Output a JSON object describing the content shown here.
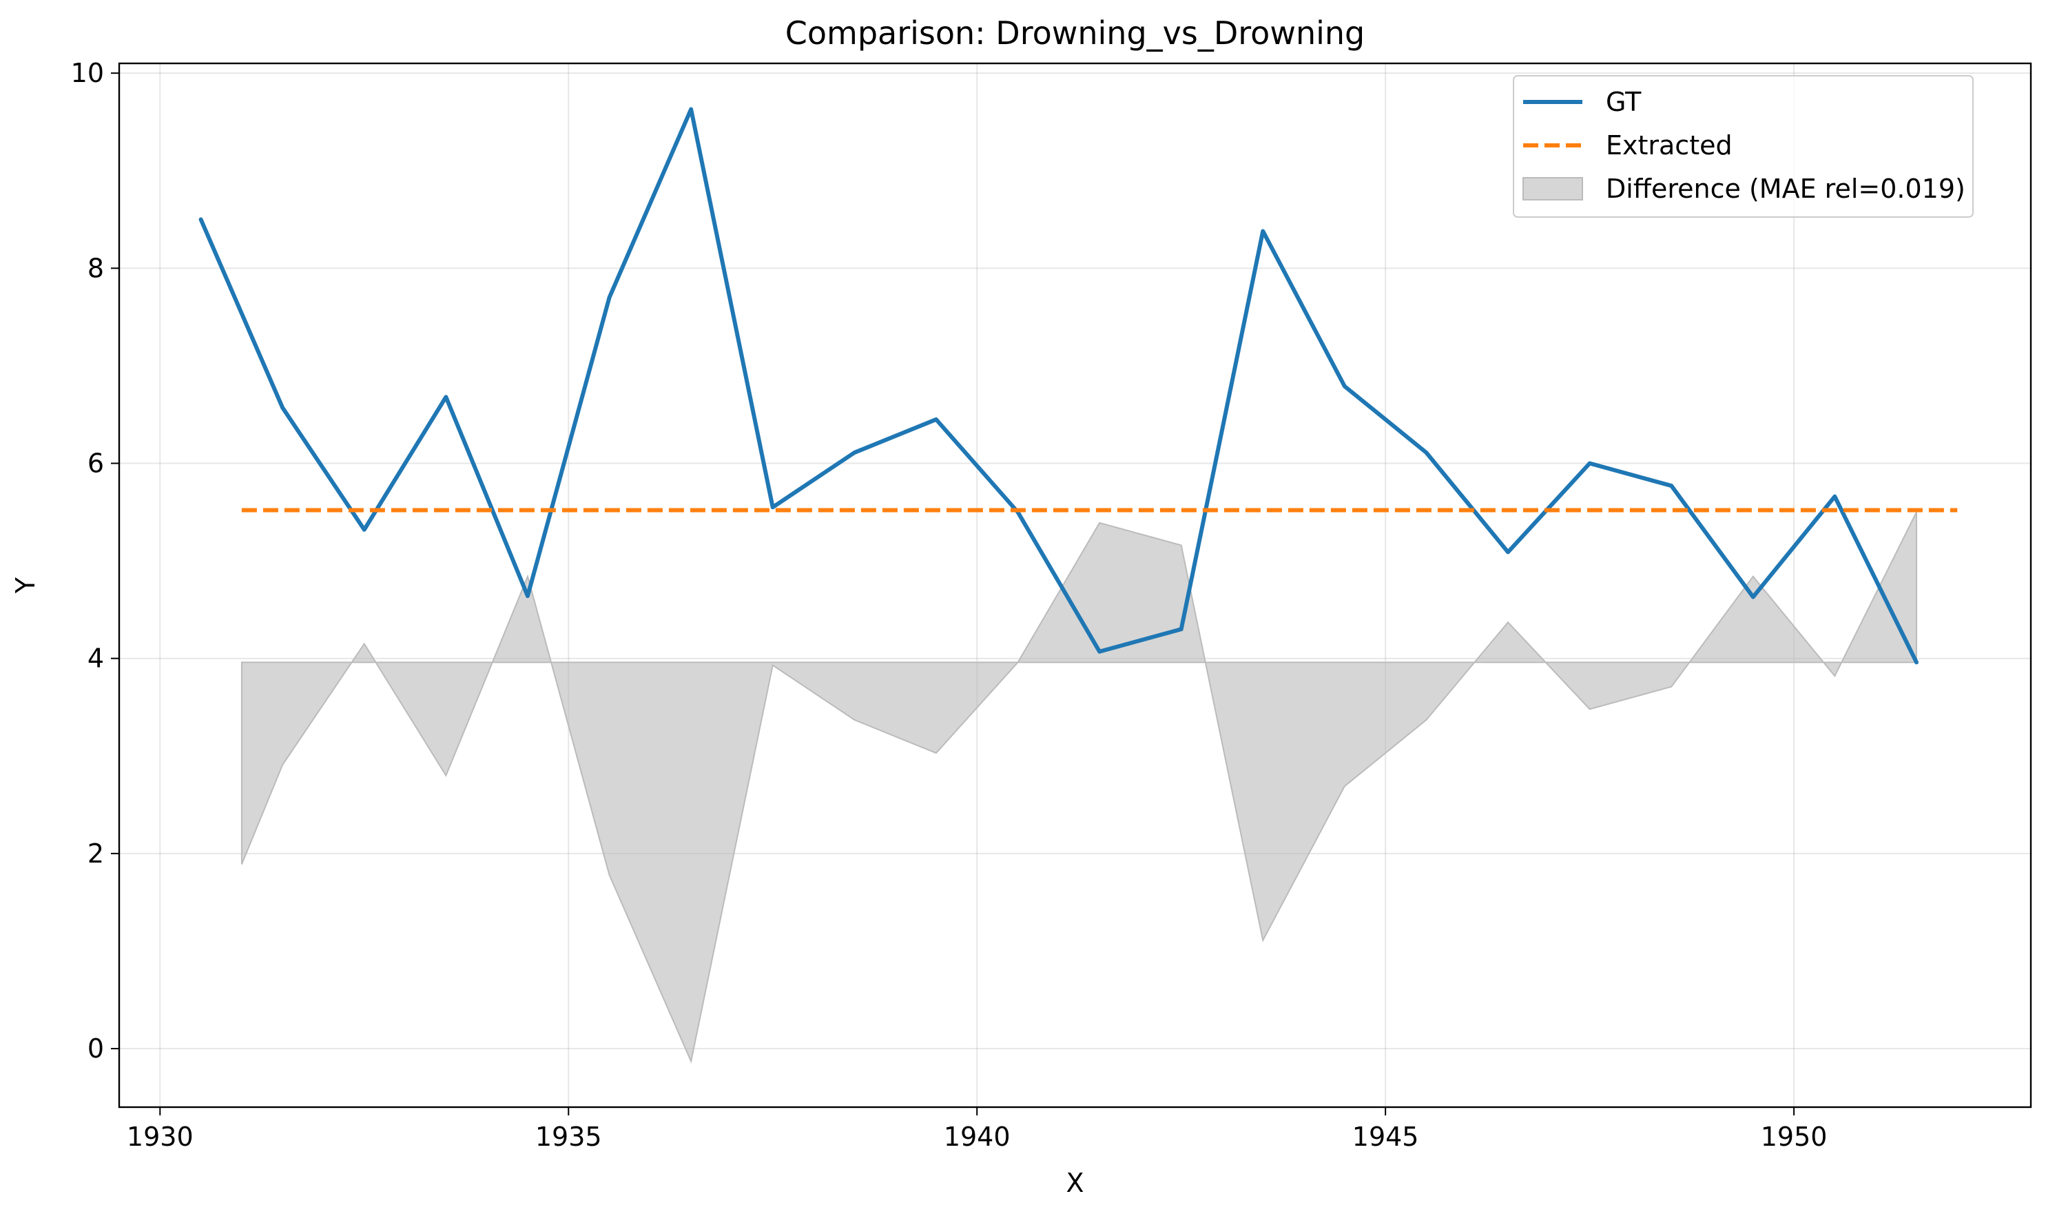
{
  "chart_data": {
    "type": "line",
    "title": "Comparison: Drowning_vs_Drowning",
    "xlabel": "X",
    "ylabel": "Y",
    "xlim": [
      1929.5,
      1952.9
    ],
    "ylim": [
      -0.6,
      10.1
    ],
    "xticks": [
      1930,
      1935,
      1940,
      1945,
      1950
    ],
    "yticks": [
      0,
      2,
      4,
      6,
      8,
      10
    ],
    "grid": true,
    "legend_position": "top-right",
    "series": [
      {
        "name": "GT",
        "color": "#1f77b4",
        "style": "solid",
        "x": [
          1930.5,
          1931.5,
          1932.5,
          1933.5,
          1934.5,
          1935.5,
          1936.5,
          1937.5,
          1938.5,
          1939.5,
          1940.5,
          1941.5,
          1942.5,
          1943.5,
          1944.5,
          1945.5,
          1946.5,
          1947.5,
          1948.5,
          1949.5,
          1950.5,
          1951.5
        ],
        "values": [
          8.5,
          6.57,
          5.32,
          6.68,
          4.64,
          7.7,
          9.63,
          5.55,
          6.11,
          6.45,
          5.5,
          4.07,
          4.3,
          8.38,
          6.79,
          6.11,
          5.09,
          6.0,
          5.77,
          4.63,
          5.66,
          3.96
        ]
      },
      {
        "name": "Extracted",
        "color": "#ff7f0e",
        "style": "dashed",
        "x": [
          1931.0,
          1952.0
        ],
        "values": [
          5.52,
          5.52
        ]
      }
    ],
    "difference": {
      "name": "Difference (MAE rel=0.019)",
      "color": "#bbbbbb",
      "baseline": 3.96,
      "x": [
        1931.0,
        1931.5,
        1932.5,
        1933.5,
        1934.5,
        1935.5,
        1936.5,
        1937.5,
        1938.5,
        1939.5,
        1940.5,
        1941.5,
        1942.5,
        1943.5,
        1944.5,
        1945.5,
        1946.5,
        1947.5,
        1948.5,
        1949.5,
        1950.5,
        1951.5
      ],
      "values": [
        1.89,
        2.91,
        4.15,
        2.8,
        4.84,
        1.78,
        -0.13,
        3.93,
        3.37,
        3.03,
        3.96,
        5.39,
        5.16,
        1.11,
        2.69,
        3.37,
        4.37,
        3.48,
        3.71,
        4.84,
        3.82,
        5.5
      ]
    }
  }
}
